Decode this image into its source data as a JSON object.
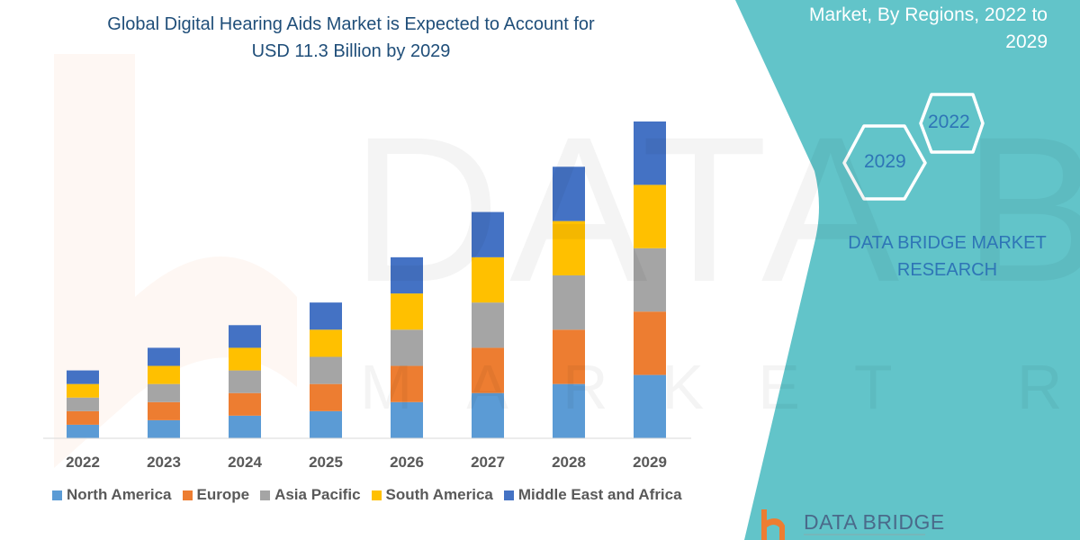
{
  "title_lines": [
    "Global Digital Hearing Aids Market is Expected to Account for",
    "USD 11.3 Billion by 2029"
  ],
  "side_panel": {
    "title_lines": [
      "Market, By Regions, 2022 to",
      "2029"
    ],
    "hex_start": "2022",
    "hex_end": "2029",
    "brand_lines": [
      "DATA BRIDGE MARKET",
      "RESEARCH"
    ],
    "logo_text": "DATA BRIDGE",
    "panel_color": "#62c4c9"
  },
  "watermark": {
    "line1": "DATA BRIDGE",
    "line2": "MARKET RESEARCH"
  },
  "chart_data": {
    "type": "bar",
    "stacked": true,
    "categories": [
      "2022",
      "2023",
      "2024",
      "2025",
      "2026",
      "2027",
      "2028",
      "2029"
    ],
    "series": [
      {
        "name": "North America",
        "color": "#5b9bd5",
        "values": [
          1.5,
          2.0,
          2.5,
          3.0,
          4.0,
          5.0,
          6.0,
          7.0
        ]
      },
      {
        "name": "Europe",
        "color": "#ed7d31",
        "values": [
          1.5,
          2.0,
          2.5,
          3.0,
          4.0,
          5.0,
          6.0,
          7.0
        ]
      },
      {
        "name": "Asia Pacific",
        "color": "#a5a5a5",
        "values": [
          1.5,
          2.0,
          2.5,
          3.0,
          4.0,
          5.0,
          6.0,
          7.0
        ]
      },
      {
        "name": "South America",
        "color": "#ffc000",
        "values": [
          1.5,
          2.0,
          2.5,
          3.0,
          4.0,
          5.0,
          6.0,
          7.0
        ]
      },
      {
        "name": "Middle East and Africa",
        "color": "#4472c4",
        "values": [
          1.5,
          2.0,
          2.5,
          3.0,
          4.0,
          5.0,
          6.0,
          7.0
        ]
      }
    ],
    "ylim": [
      0,
      35
    ],
    "y_axis_shown": false,
    "grid": false,
    "legend_position": "bottom"
  }
}
